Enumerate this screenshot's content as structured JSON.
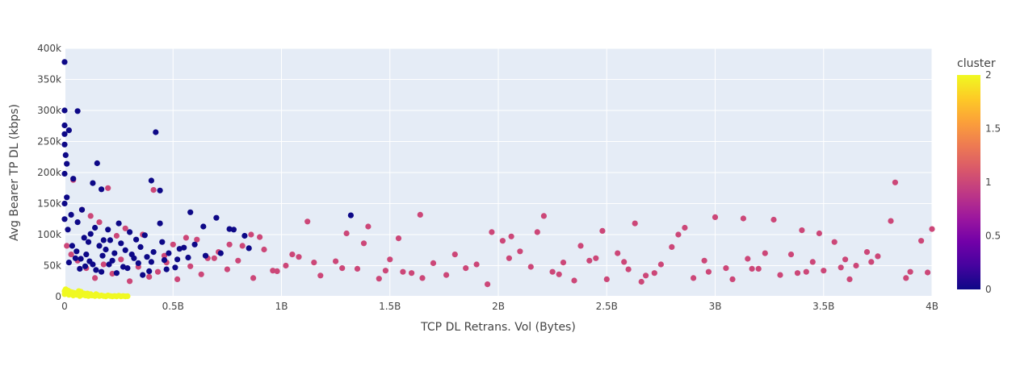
{
  "chart_data": {
    "type": "scatter",
    "title": "",
    "xlabel": "TCP DL Retrans. Vol (Bytes)",
    "ylabel": "Avg Bearer TP DL (kbps)",
    "xlim": [
      0,
      4000000000
    ],
    "ylim": [
      0,
      400000
    ],
    "xticks": [
      0,
      500000000,
      1000000000,
      1500000000,
      2000000000,
      2500000000,
      3000000000,
      3500000000,
      4000000000
    ],
    "xtick_labels": [
      "0",
      "0.5B",
      "1B",
      "1.5B",
      "2B",
      "2.5B",
      "3B",
      "3.5B",
      "4B"
    ],
    "yticks": [
      0,
      50000,
      100000,
      150000,
      200000,
      250000,
      300000,
      350000,
      400000
    ],
    "ytick_labels": [
      "0",
      "50k",
      "100k",
      "150k",
      "200k",
      "250k",
      "300k",
      "350k",
      "400k"
    ],
    "grid": true,
    "colorbar": {
      "title": "cluster",
      "range": [
        0,
        2
      ],
      "ticks": [
        0,
        0.5,
        1,
        1.5,
        2
      ],
      "tick_labels": [
        "0",
        "0.5",
        "1",
        "1.5",
        "2"
      ],
      "colorscale": [
        "#0d0887",
        "#46039f",
        "#7201a8",
        "#9c179e",
        "#bd3786",
        "#d8576b",
        "#ed7953",
        "#fb9f3a",
        "#fdca26",
        "#f0f921"
      ]
    },
    "colors": {
      "cluster_0": "#0d0887",
      "cluster_1": "#cc4778",
      "cluster_2": "#f0f921"
    },
    "series": [
      {
        "name": "cluster 0",
        "cluster": 0,
        "x": [
          0,
          0,
          0,
          0,
          0,
          5000000,
          10000000,
          0,
          20000000,
          60000000,
          150000000,
          130000000,
          170000000,
          420000000,
          400000000,
          440000000,
          580000000,
          700000000,
          830000000,
          1320000000,
          760000000,
          640000000,
          440000000,
          370000000,
          300000000,
          250000000,
          200000000,
          180000000,
          120000000,
          80000000,
          40000000,
          10000000,
          30000000,
          60000000,
          90000000,
          110000000,
          140000000,
          160000000,
          190000000,
          210000000,
          230000000,
          260000000,
          280000000,
          310000000,
          330000000,
          350000000,
          380000000,
          410000000,
          450000000,
          480000000,
          520000000,
          550000000,
          600000000,
          650000000,
          720000000,
          780000000,
          850000000,
          20000000,
          50000000,
          70000000,
          100000000,
          130000000,
          170000000,
          220000000,
          270000000,
          320000000,
          360000000,
          400000000,
          470000000,
          530000000,
          0,
          0,
          15000000,
          35000000,
          55000000,
          75000000,
          95000000,
          115000000,
          145000000,
          175000000,
          205000000,
          240000000,
          290000000,
          340000000,
          390000000,
          460000000,
          510000000,
          570000000
        ],
        "y": [
          378000,
          300000,
          276000,
          262000,
          245000,
          228000,
          214000,
          198000,
          268000,
          299000,
          215000,
          183000,
          173000,
          265000,
          187000,
          171000,
          136000,
          127000,
          98000,
          131000,
          109000,
          113000,
          118000,
          99000,
          104000,
          118000,
          108000,
          91000,
          101000,
          140000,
          190000,
          160000,
          132000,
          120000,
          95000,
          88000,
          111000,
          82000,
          76000,
          91000,
          70000,
          86000,
          75000,
          68000,
          92000,
          80000,
          64000,
          72000,
          88000,
          70000,
          60000,
          79000,
          84000,
          66000,
          70000,
          108000,
          78000,
          55000,
          62000,
          45000,
          68000,
          52000,
          40000,
          58000,
          48000,
          62000,
          35000,
          56000,
          44000,
          77000,
          150000,
          125000,
          108000,
          82000,
          73000,
          61000,
          49000,
          57000,
          43000,
          66000,
          52000,
          38000,
          46000,
          54000,
          41000,
          59000,
          47000,
          63000
        ]
      },
      {
        "name": "cluster 1",
        "cluster": 1,
        "x": [
          3830000000,
          3810000000,
          4000000000,
          3400000000,
          3270000000,
          3130000000,
          3000000000,
          2860000000,
          2630000000,
          2480000000,
          2210000000,
          1970000000,
          1640000000,
          1540000000,
          1400000000,
          1300000000,
          1120000000,
          2050000000,
          2150000000,
          2300000000,
          2550000000,
          2720000000,
          2800000000,
          2950000000,
          3200000000,
          3350000000,
          3500000000,
          3600000000,
          3700000000,
          3900000000,
          3950000000,
          3750000000,
          3650000000,
          3550000000,
          3450000000,
          3300000000,
          3150000000,
          3050000000,
          2900000000,
          2750000000,
          2600000000,
          2450000000,
          2350000000,
          2250000000,
          2100000000,
          1900000000,
          1800000000,
          1700000000,
          1600000000,
          1500000000,
          1450000000,
          1350000000,
          1250000000,
          1180000000,
          1080000000,
          1020000000,
          980000000,
          920000000,
          870000000,
          800000000,
          750000000,
          690000000,
          630000000,
          580000000,
          520000000,
          470000000,
          430000000,
          390000000,
          340000000,
          300000000,
          260000000,
          220000000,
          180000000,
          140000000,
          100000000,
          60000000,
          30000000,
          10000000,
          2500000000,
          2680000000,
          3080000000,
          3380000000,
          3620000000,
          3880000000,
          1850000000,
          1650000000,
          1480000000,
          1280000000,
          2020000000,
          2180000000,
          2380000000,
          2580000000,
          2830000000,
          3230000000,
          3480000000,
          3720000000,
          960000000,
          860000000,
          760000000,
          660000000,
          560000000,
          460000000,
          360000000,
          240000000,
          160000000,
          80000000,
          410000000,
          200000000,
          40000000,
          120000000,
          280000000,
          500000000,
          610000000,
          710000000,
          820000000,
          900000000,
          1050000000,
          1150000000,
          1380000000,
          1560000000,
          1760000000,
          1950000000,
          2060000000,
          2280000000,
          2420000000,
          2660000000,
          2970000000,
          3170000000,
          3420000000,
          3580000000,
          3980000000
        ],
        "y": [
          184000,
          122000,
          109000,
          107000,
          124000,
          126000,
          128000,
          111000,
          118000,
          106000,
          130000,
          104000,
          132000,
          94000,
          113000,
          102000,
          121000,
          62000,
          48000,
          55000,
          70000,
          38000,
          80000,
          58000,
          45000,
          68000,
          42000,
          60000,
          72000,
          40000,
          90000,
          65000,
          50000,
          88000,
          56000,
          35000,
          61000,
          46000,
          30000,
          52000,
          44000,
          62000,
          26000,
          40000,
          73000,
          52000,
          68000,
          54000,
          38000,
          60000,
          29000,
          45000,
          57000,
          34000,
          64000,
          50000,
          41000,
          76000,
          30000,
          58000,
          44000,
          62000,
          36000,
          49000,
          28000,
          55000,
          40000,
          32000,
          48000,
          25000,
          60000,
          37000,
          52000,
          30000,
          46000,
          58000,
          68000,
          82000,
          28000,
          34000,
          28000,
          38000,
          28000,
          30000,
          46000,
          30000,
          42000,
          46000,
          90000,
          104000,
          82000,
          56000,
          100000,
          70000,
          102000,
          56000,
          42000,
          100000,
          84000,
          62000,
          95000,
          66000,
          100000,
          98000,
          120000,
          140000,
          172000,
          175000,
          188000,
          130000,
          110000,
          84000,
          92000,
          72000,
          82000,
          96000,
          68000,
          55000,
          86000,
          40000,
          35000,
          20000,
          97000,
          36000,
          58000,
          24000,
          40000,
          45000,
          40000,
          47000,
          39000
        ]
      },
      {
        "name": "cluster 2",
        "cluster": 2,
        "x": [
          0,
          10000000,
          20000000,
          30000000,
          40000000,
          50000000,
          60000000,
          70000000,
          80000000,
          90000000,
          100000000,
          110000000,
          120000000,
          130000000,
          140000000,
          150000000,
          160000000,
          170000000,
          180000000,
          190000000,
          200000000,
          210000000,
          220000000,
          230000000,
          240000000,
          250000000,
          260000000,
          270000000,
          280000000,
          290000000,
          5000000,
          25000000,
          45000000,
          65000000,
          85000000,
          105000000,
          125000000,
          145000000,
          0,
          15000000,
          35000000,
          55000000,
          75000000,
          95000000
        ],
        "y": [
          9000,
          5000,
          3000,
          7000,
          2000,
          4000,
          6000,
          1000,
          3000,
          5000,
          2000,
          1000,
          4000,
          2000,
          1000,
          3000,
          1000,
          2000,
          1000,
          500,
          2000,
          1000,
          500,
          1000,
          500,
          1500,
          500,
          1000,
          500,
          800,
          12000,
          8000,
          6000,
          9000,
          3000,
          5000,
          2000,
          4000,
          4000,
          10000,
          7000,
          3000,
          8000,
          2000
        ]
      }
    ]
  }
}
